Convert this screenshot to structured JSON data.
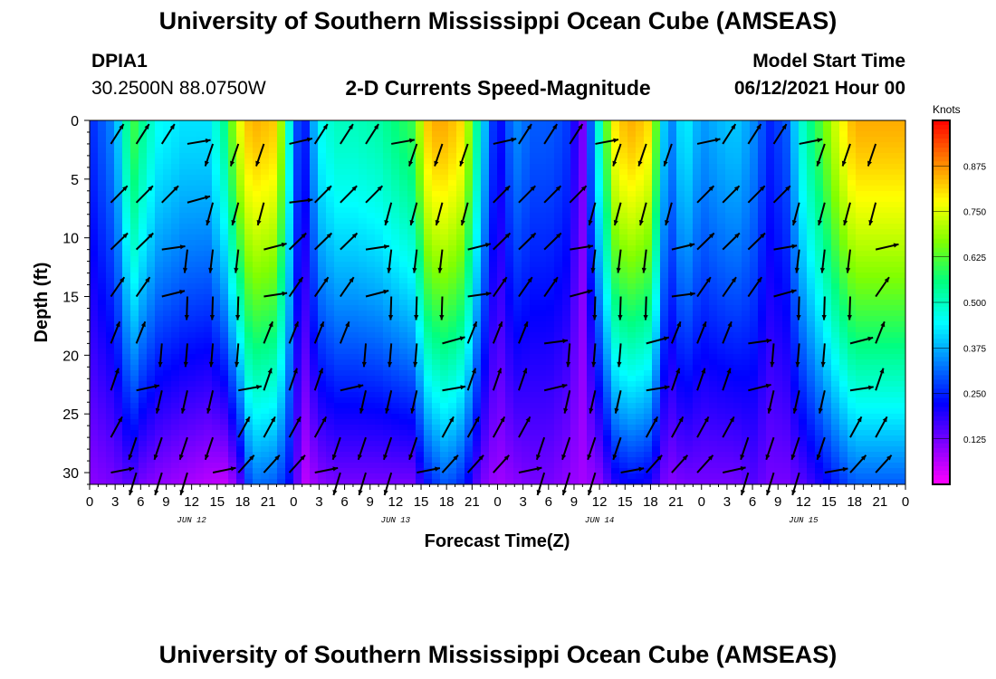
{
  "header": {
    "title": "University of Southern Mississippi Ocean Cube (AMSEAS)",
    "station": "DPIA1",
    "coords": "30.2500N  88.0750W",
    "subtitle": "2-D Currents Speed-Magnitude",
    "model_label": "Model Start Time",
    "model_date": "06/12/2021 Hour 00"
  },
  "footer": {
    "title": "University of Southern Mississippi Ocean Cube (AMSEAS)"
  },
  "chart_data": {
    "type": "heatmap",
    "xlabel": "Forecast Time(Z)",
    "ylabel": "Depth (ft)",
    "x_hours": [
      0,
      96
    ],
    "x_tick_labels": [
      "0",
      "3",
      "6",
      "9",
      "12",
      "15",
      "18",
      "21",
      "0",
      "3",
      "6",
      "9",
      "12",
      "15",
      "18",
      "21",
      "0",
      "3",
      "6",
      "9",
      "12",
      "15",
      "18",
      "21",
      "0",
      "3",
      "6",
      "9",
      "12",
      "15",
      "18",
      "21",
      "0"
    ],
    "day_labels": [
      {
        "label": "JUN 12",
        "hour": 12
      },
      {
        "label": "JUN 13",
        "hour": 36
      },
      {
        "label": "JUN 14",
        "hour": 60
      },
      {
        "label": "JUN 15",
        "hour": 84
      }
    ],
    "ylim": [
      0,
      31
    ],
    "y_ticks": [
      0,
      5,
      10,
      15,
      20,
      25,
      30
    ],
    "colorbar": {
      "unit": "Knots",
      "range": [
        0,
        1
      ],
      "tick_labels": [
        "0.125",
        "0.250",
        "0.375",
        "0.500",
        "0.625",
        "0.750",
        "0.875"
      ],
      "colors": [
        "#ff00ff",
        "#8000ff",
        "#0000ff",
        "#0080ff",
        "#00ffff",
        "#00ff80",
        "#80ff00",
        "#ffff00",
        "#ff8000",
        "#ff0000"
      ]
    },
    "speed_profile": {
      "comment_free": true,
      "hours": [
        0,
        3,
        5,
        6,
        8,
        11,
        14,
        16,
        17.5,
        19,
        22,
        24,
        25,
        27,
        29,
        31,
        34,
        38,
        40,
        42,
        44,
        46,
        48,
        50,
        52,
        54,
        56,
        58,
        60,
        62,
        64,
        66,
        68,
        70,
        72,
        74,
        76,
        78,
        80,
        82,
        84,
        86,
        88,
        90,
        92,
        94,
        96
      ],
      "surface": [
        0.25,
        0.35,
        0.62,
        0.55,
        0.45,
        0.42,
        0.42,
        0.55,
        0.75,
        0.85,
        0.82,
        0.35,
        0.2,
        0.45,
        0.5,
        0.5,
        0.52,
        0.6,
        0.85,
        0.85,
        0.8,
        0.45,
        0.2,
        0.35,
        0.3,
        0.3,
        0.28,
        0.12,
        0.5,
        0.82,
        0.85,
        0.8,
        0.3,
        0.45,
        0.35,
        0.38,
        0.4,
        0.35,
        0.25,
        0.3,
        0.5,
        0.62,
        0.75,
        0.85,
        0.85,
        0.85,
        0.85
      ],
      "bottom": [
        0.1,
        0.12,
        0.15,
        0.12,
        0.1,
        0.08,
        0.06,
        0.05,
        0.12,
        0.32,
        0.3,
        0.2,
        0.05,
        0.1,
        0.12,
        0.12,
        0.12,
        0.12,
        0.25,
        0.3,
        0.25,
        0.12,
        0.08,
        0.1,
        0.12,
        0.12,
        0.1,
        0.08,
        0.1,
        0.2,
        0.22,
        0.2,
        0.1,
        0.12,
        0.12,
        0.12,
        0.12,
        0.15,
        0.12,
        0.12,
        0.15,
        0.2,
        0.25,
        0.3,
        0.3,
        0.3,
        0.3
      ]
    }
  }
}
